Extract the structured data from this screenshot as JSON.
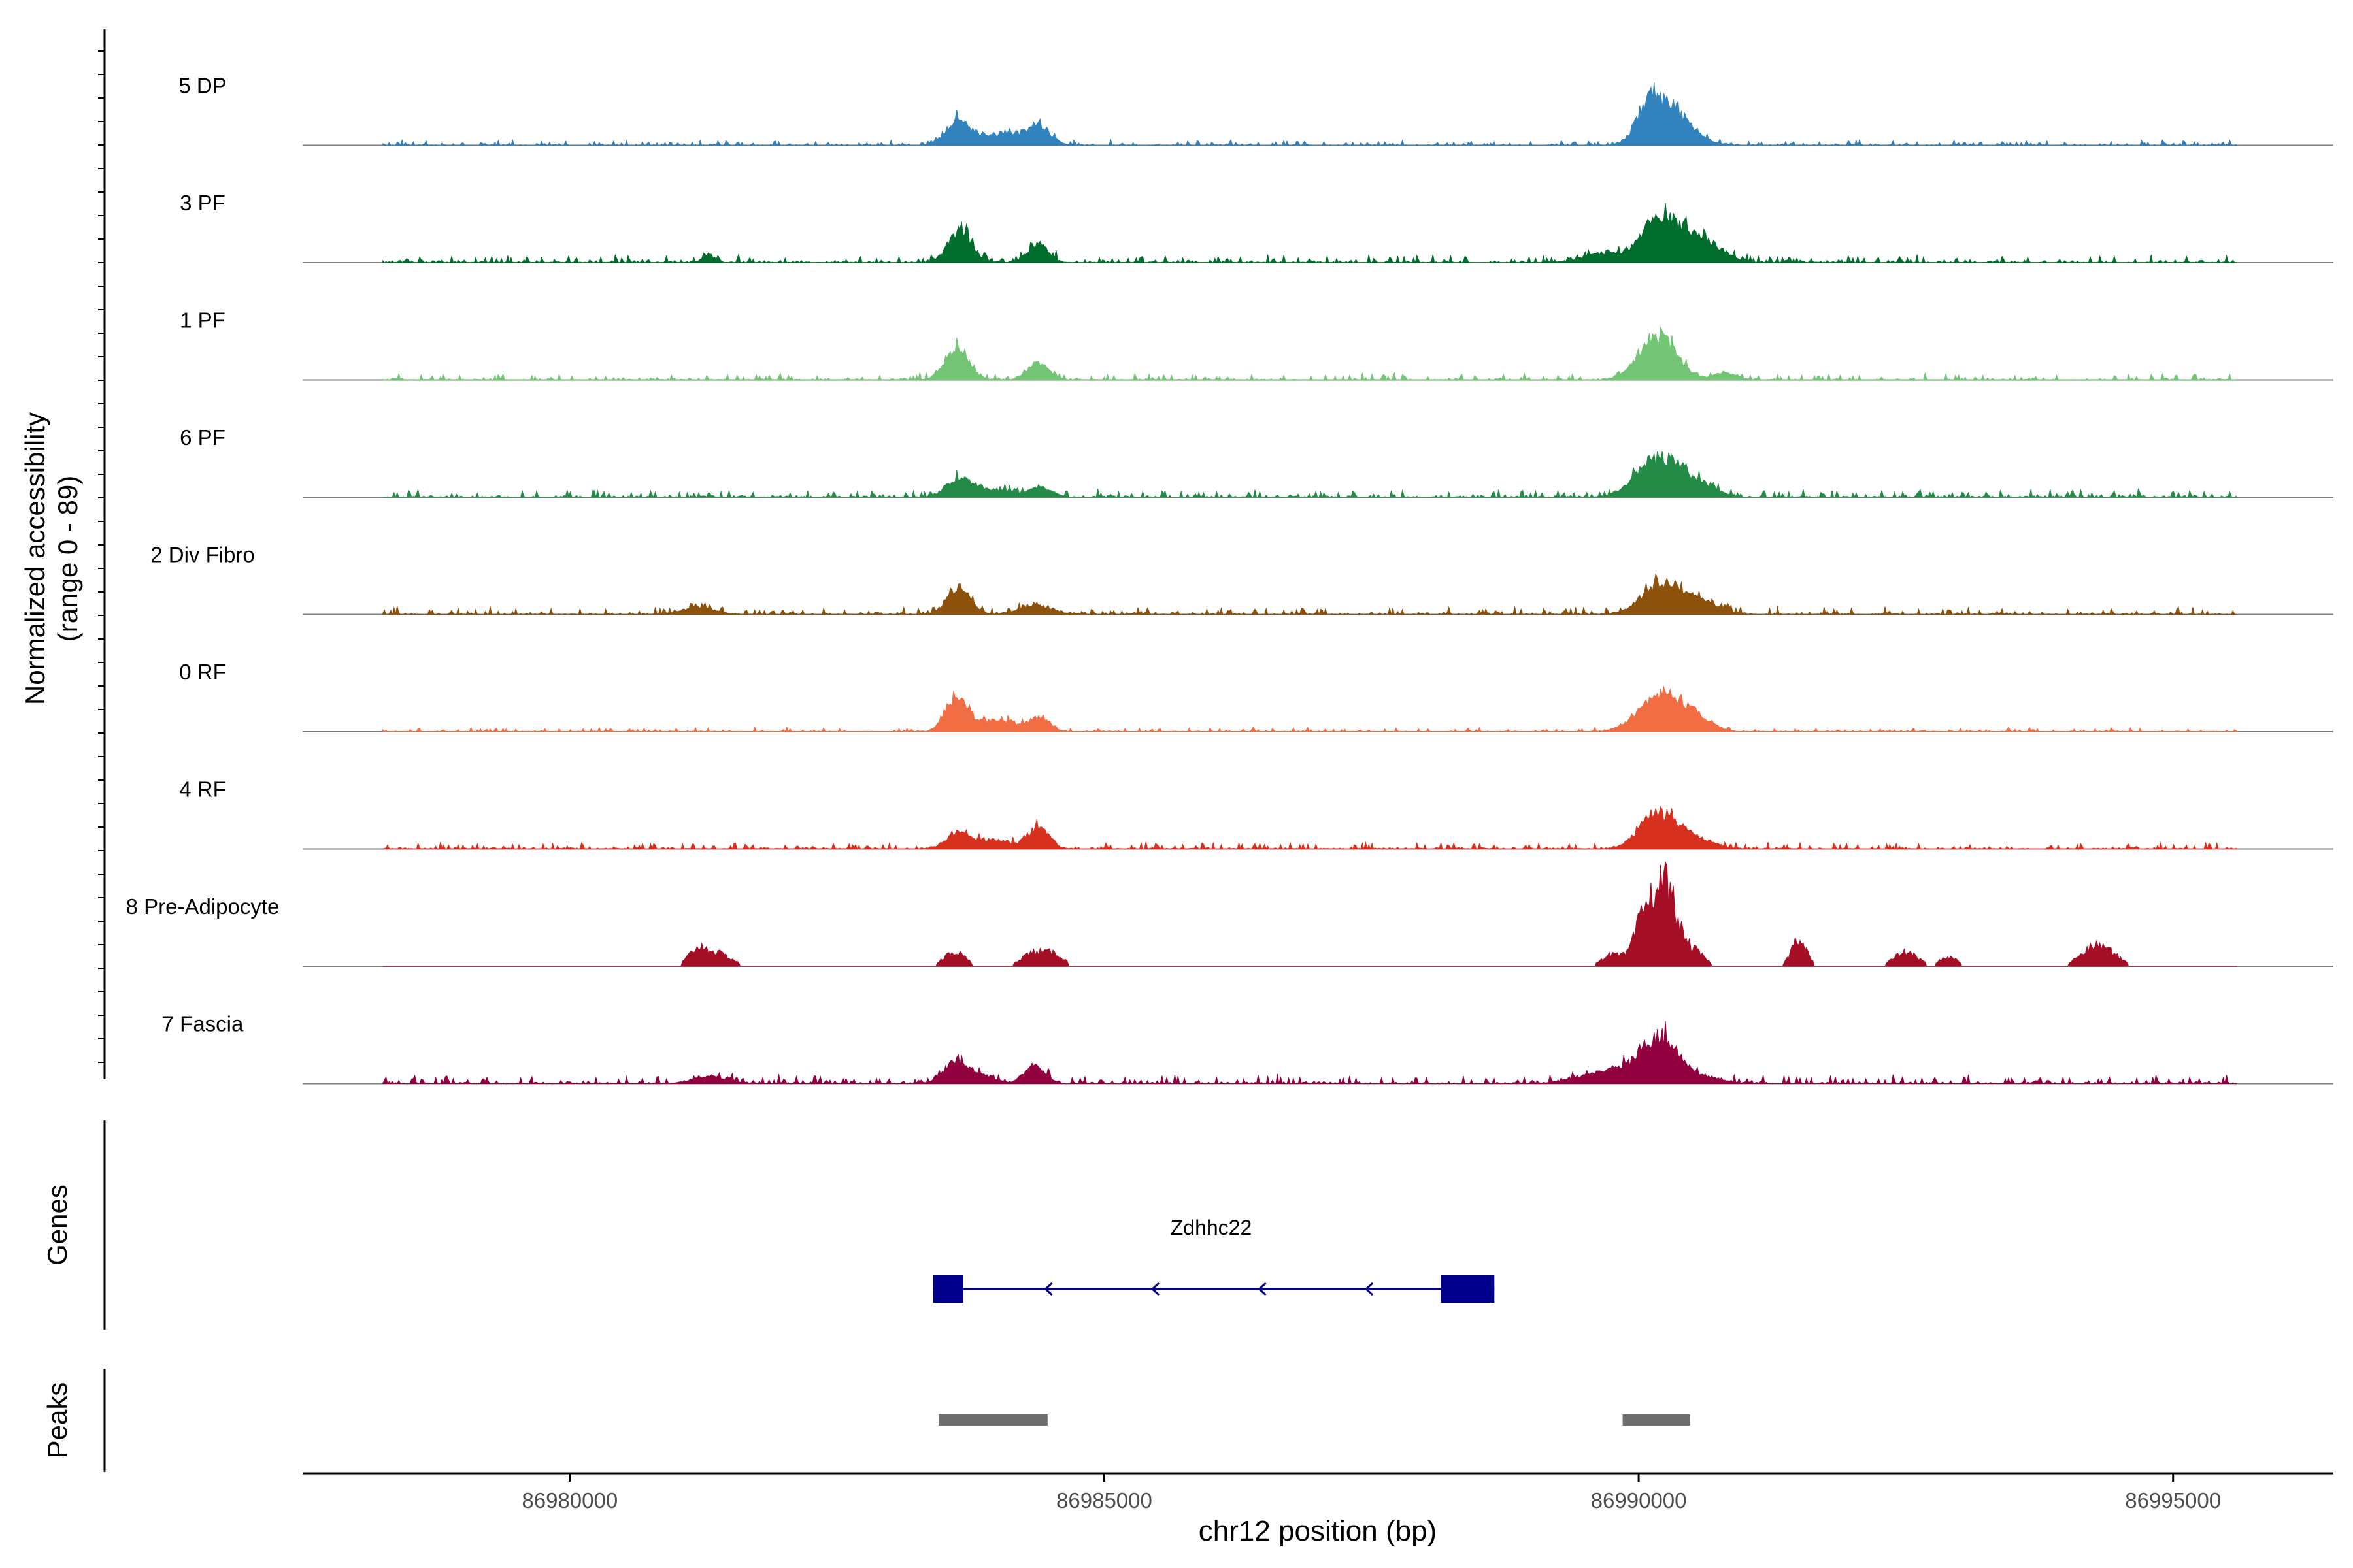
{
  "chart_data": {
    "type": "area",
    "title": "",
    "ylabel_line1": "Normalized accessibility",
    "ylabel_line2": "(range 0 - 89)",
    "xlabel": "chr12 position (bp)",
    "xlim": [
      86977500,
      86996500
    ],
    "track_ylim": [
      0,
      89
    ],
    "x_ticks": [
      86980000,
      86985000,
      86990000,
      86995000
    ],
    "x_tick_labels": [
      "86980000",
      "86985000",
      "86990000",
      "86995000"
    ],
    "tracks": [
      {
        "name": "5 DP",
        "color": "#3182BD",
        "peaks": [
          [
            86983630,
            22,
            110
          ],
          [
            86983900,
            8,
            90
          ],
          [
            86984100,
            10,
            80
          ],
          [
            86984380,
            18,
            110
          ],
          [
            86990080,
            24,
            110
          ],
          [
            86990250,
            28,
            160
          ],
          [
            86990500,
            8,
            140
          ]
        ],
        "noise": 0.05
      },
      {
        "name": "3 PF",
        "color": "#006D2C",
        "peaks": [
          [
            86983650,
            26,
            110
          ],
          [
            86984380,
            16,
            90
          ],
          [
            86989700,
            8,
            200
          ],
          [
            86990150,
            24,
            140
          ],
          [
            86990400,
            26,
            200
          ],
          [
            86990700,
            8,
            150
          ],
          [
            86981300,
            6,
            60
          ]
        ],
        "noise": 0.07
      },
      {
        "name": "1 PF",
        "color": "#74C476",
        "peaks": [
          [
            86983620,
            26,
            110
          ],
          [
            86984380,
            14,
            100
          ],
          [
            86990180,
            38,
            170
          ],
          [
            86990800,
            6,
            100
          ]
        ],
        "noise": 0.06
      },
      {
        "name": "6 PF",
        "color": "#238B45",
        "peaks": [
          [
            86983650,
            16,
            120
          ],
          [
            86984000,
            6,
            150
          ],
          [
            86984400,
            8,
            110
          ],
          [
            86990050,
            14,
            160
          ],
          [
            86990300,
            28,
            190
          ],
          [
            86990650,
            6,
            120
          ]
        ],
        "noise": 0.07
      },
      {
        "name": "2 Div Fibro",
        "color": "#8C510A",
        "peaks": [
          [
            86983640,
            22,
            110
          ],
          [
            86984360,
            8,
            140
          ],
          [
            86990120,
            14,
            150
          ],
          [
            86990350,
            20,
            180
          ],
          [
            86990700,
            6,
            120
          ],
          [
            86981200,
            6,
            150
          ]
        ],
        "noise": 0.07
      },
      {
        "name": "0 RF",
        "color": "#F16D44",
        "peaks": [
          [
            86983620,
            30,
            100
          ],
          [
            86983900,
            8,
            100
          ],
          [
            86984100,
            8,
            90
          ],
          [
            86984380,
            12,
            100
          ],
          [
            86990050,
            12,
            160
          ],
          [
            86990300,
            28,
            180
          ],
          [
            86990600,
            6,
            120
          ]
        ],
        "noise": 0.04
      },
      {
        "name": "4 RF",
        "color": "#D7301F",
        "peaks": [
          [
            86983650,
            14,
            120
          ],
          [
            86984000,
            8,
            110
          ],
          [
            86984380,
            18,
            100
          ],
          [
            86990100,
            18,
            140
          ],
          [
            86990300,
            20,
            160
          ],
          [
            86990600,
            6,
            120
          ]
        ],
        "noise": 0.06
      },
      {
        "name": "8 Pre-Adipocyte",
        "color": "#A50F26",
        "peaks": [
          [
            86981200,
            14,
            90
          ],
          [
            86981400,
            10,
            120
          ],
          [
            86983600,
            12,
            100
          ],
          [
            86984350,
            12,
            120
          ],
          [
            86984550,
            8,
            80
          ],
          [
            86989750,
            10,
            100
          ],
          [
            86990050,
            40,
            90
          ],
          [
            86990250,
            70,
            100
          ],
          [
            86990500,
            14,
            100
          ],
          [
            86991500,
            24,
            70
          ],
          [
            86992500,
            12,
            110
          ],
          [
            86992900,
            8,
            80
          ],
          [
            86994300,
            18,
            150
          ]
        ],
        "noise": 0.0
      },
      {
        "name": "7 Fascia",
        "color": "#91003F",
        "peaks": [
          [
            86983620,
            18,
            120
          ],
          [
            86984350,
            14,
            100
          ],
          [
            86983900,
            6,
            90
          ],
          [
            86989700,
            10,
            250
          ],
          [
            86990050,
            14,
            140
          ],
          [
            86990250,
            32,
            150
          ],
          [
            86990600,
            6,
            150
          ],
          [
            86981300,
            6,
            150
          ]
        ],
        "noise": 0.08
      }
    ],
    "genes": {
      "label": "Genes",
      "gene_name": "Zdhhc22",
      "start": 86983400,
      "end": 86988650,
      "strand": "-",
      "exons": [
        [
          86983400,
          86983680
        ],
        [
          86988150,
          86988650
        ]
      ],
      "color": "#00008B"
    },
    "peaks_track": {
      "label": "Peaks",
      "regions": [
        [
          86983450,
          86984470
        ],
        [
          86989850,
          86990480
        ]
      ],
      "color": "#6E6E6E"
    }
  }
}
